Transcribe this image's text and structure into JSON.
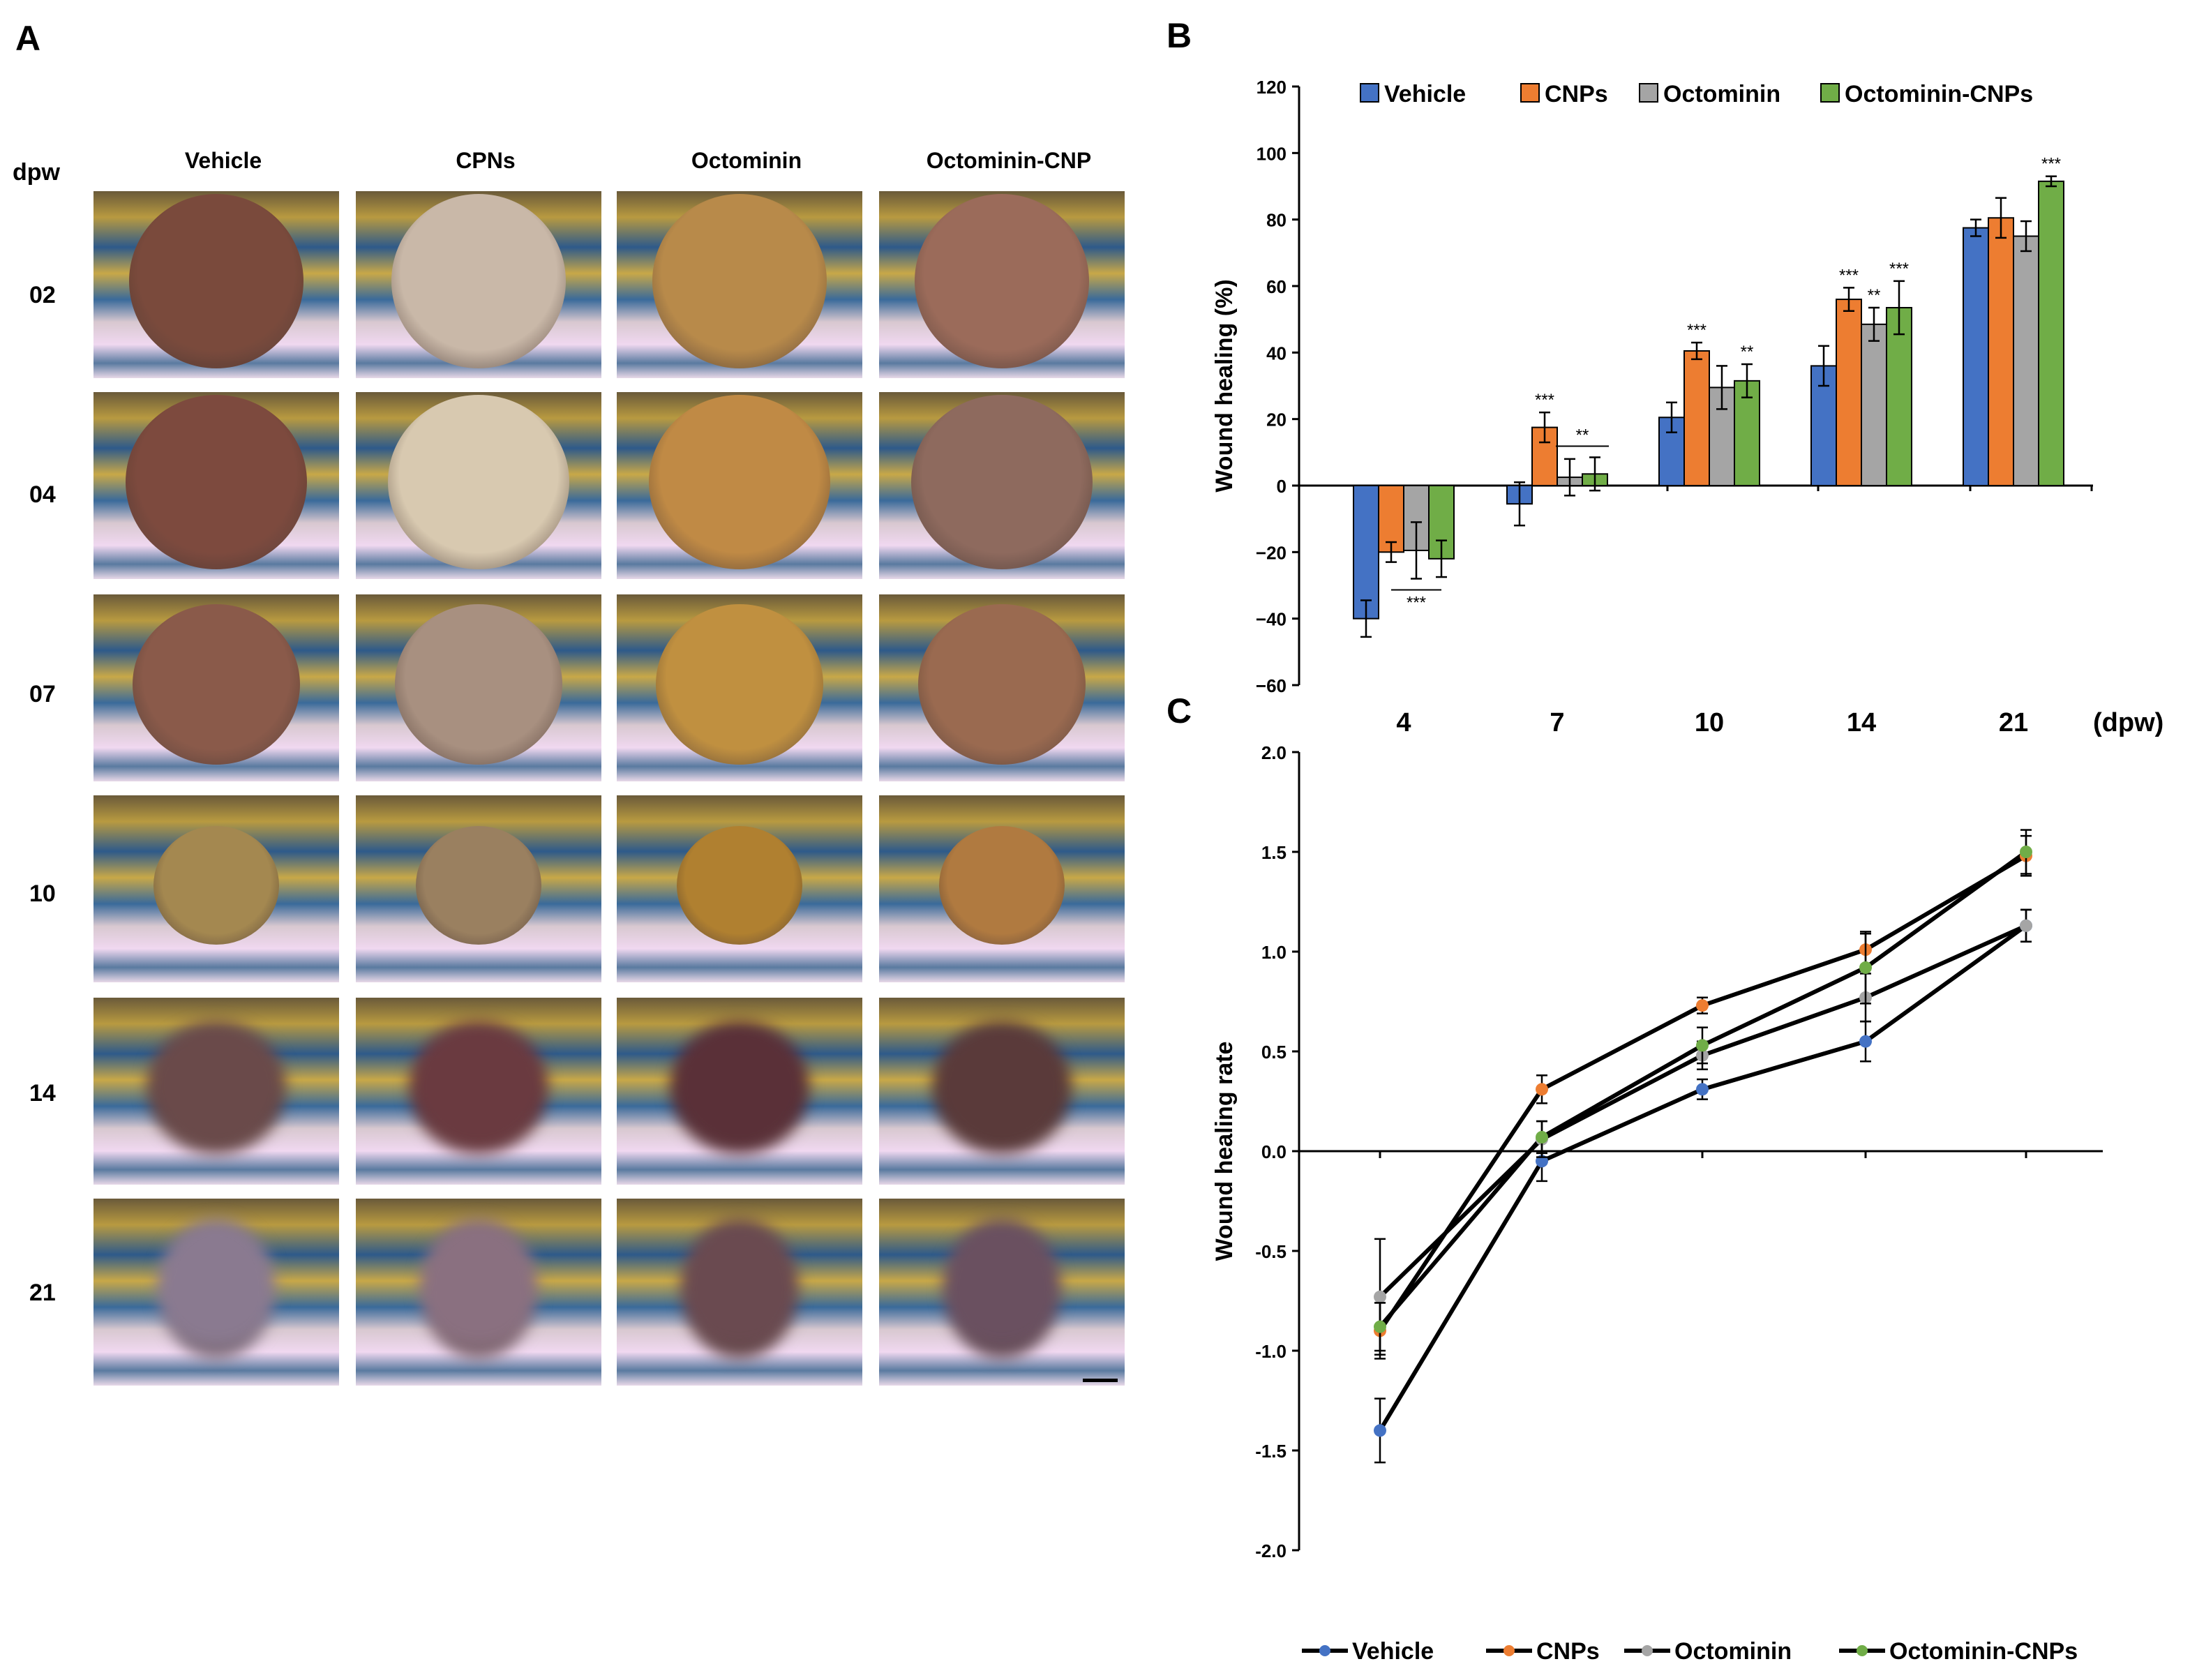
{
  "panel_labels": {
    "a": "A",
    "b": "B",
    "c": "C"
  },
  "panel_a": {
    "row_header": "dpw",
    "columns": [
      "Vehicle",
      "CPNs",
      "Octominin",
      "Octominin-CNP"
    ],
    "rows": [
      "02",
      "04",
      "07",
      "10",
      "14",
      "21"
    ]
  },
  "colors": {
    "Vehicle": "#4472C4",
    "CNPs": "#ED7D31",
    "Octominin": "#A5A5A5",
    "Octominin-CNPs": "#70AD47"
  },
  "chart_data": [
    {
      "type": "bar",
      "panel": "B",
      "ylabel": "Wound healing (%)",
      "xlabel": "(dpw)",
      "ylim": [
        -60,
        120
      ],
      "yticks": [
        "120",
        "100",
        "80",
        "60",
        "40",
        "20",
        "0",
        "−20",
        "−40",
        "−60"
      ],
      "categories": [
        "4",
        "7",
        "10",
        "14",
        "21"
      ],
      "series": [
        {
          "name": "Vehicle",
          "values": [
            -40,
            -5.5,
            20.5,
            36,
            77.5
          ],
          "errors": [
            5.5,
            6.5,
            4.5,
            6,
            2.5
          ]
        },
        {
          "name": "CNPs",
          "values": [
            -20,
            17.5,
            40.5,
            56,
            80.5
          ],
          "errors": [
            3,
            4.5,
            2.5,
            3.5,
            6
          ]
        },
        {
          "name": "Octominin",
          "values": [
            -19.5,
            2.5,
            29.5,
            48.5,
            75
          ],
          "errors": [
            8.5,
            5.5,
            6.5,
            5,
            4.5
          ]
        },
        {
          "name": "Octominin-CNPs",
          "values": [
            -22,
            3.5,
            31.5,
            53.5,
            91.5
          ],
          "errors": [
            5.5,
            5,
            5,
            8,
            1.5
          ]
        }
      ],
      "annotations": [
        {
          "category": "4",
          "series": "Octominin",
          "text": "***",
          "bracket": true
        },
        {
          "category": "7",
          "series": "CNPs",
          "text": "***"
        },
        {
          "category": "7",
          "series": "Octominin-CNPs",
          "text": "**",
          "bracket": true
        },
        {
          "category": "10",
          "series": "CNPs",
          "text": "***"
        },
        {
          "category": "10",
          "series": "Octominin-CNPs",
          "text": "**"
        },
        {
          "category": "14",
          "series": "CNPs",
          "text": "***"
        },
        {
          "category": "14",
          "series": "Octominin",
          "text": "**"
        },
        {
          "category": "14",
          "series": "Octominin-CNPs",
          "text": "***"
        },
        {
          "category": "21",
          "series": "Octominin-CNPs",
          "text": "***"
        }
      ]
    },
    {
      "type": "line",
      "panel": "C",
      "ylabel": "Wound healing rate",
      "ylim": [
        -2.0,
        2.0
      ],
      "yticks": [
        "2.0",
        "1.5",
        "1.0",
        "0.5",
        "0.0",
        "-0.5",
        "-1.0",
        "-1.5",
        "-2.0"
      ],
      "x": [
        4,
        7,
        10,
        14,
        21
      ],
      "series": [
        {
          "name": "Vehicle",
          "values": [
            -1.4,
            -0.05,
            0.31,
            0.55,
            1.13
          ],
          "errors": [
            0.16,
            0.1,
            0.05,
            0.1,
            0.08
          ]
        },
        {
          "name": "CNPs",
          "values": [
            -0.9,
            0.31,
            0.73,
            1.01,
            1.48
          ],
          "errors": [
            0.14,
            0.07,
            0.04,
            0.08,
            0.1
          ]
        },
        {
          "name": "Octominin",
          "values": [
            -0.73,
            0.06,
            0.48,
            0.77,
            1.13
          ],
          "errors": [
            0.29,
            0.09,
            0.07,
            0.12,
            0.08
          ]
        },
        {
          "name": "Octominin-CNPs",
          "values": [
            -0.88,
            0.07,
            0.53,
            0.92,
            1.5
          ],
          "errors": [
            0.12,
            0.08,
            0.09,
            0.18,
            0.11
          ]
        }
      ],
      "legend": [
        "Vehicle",
        "CNPs",
        "Octominin",
        "Octominin-CNPs"
      ]
    }
  ]
}
